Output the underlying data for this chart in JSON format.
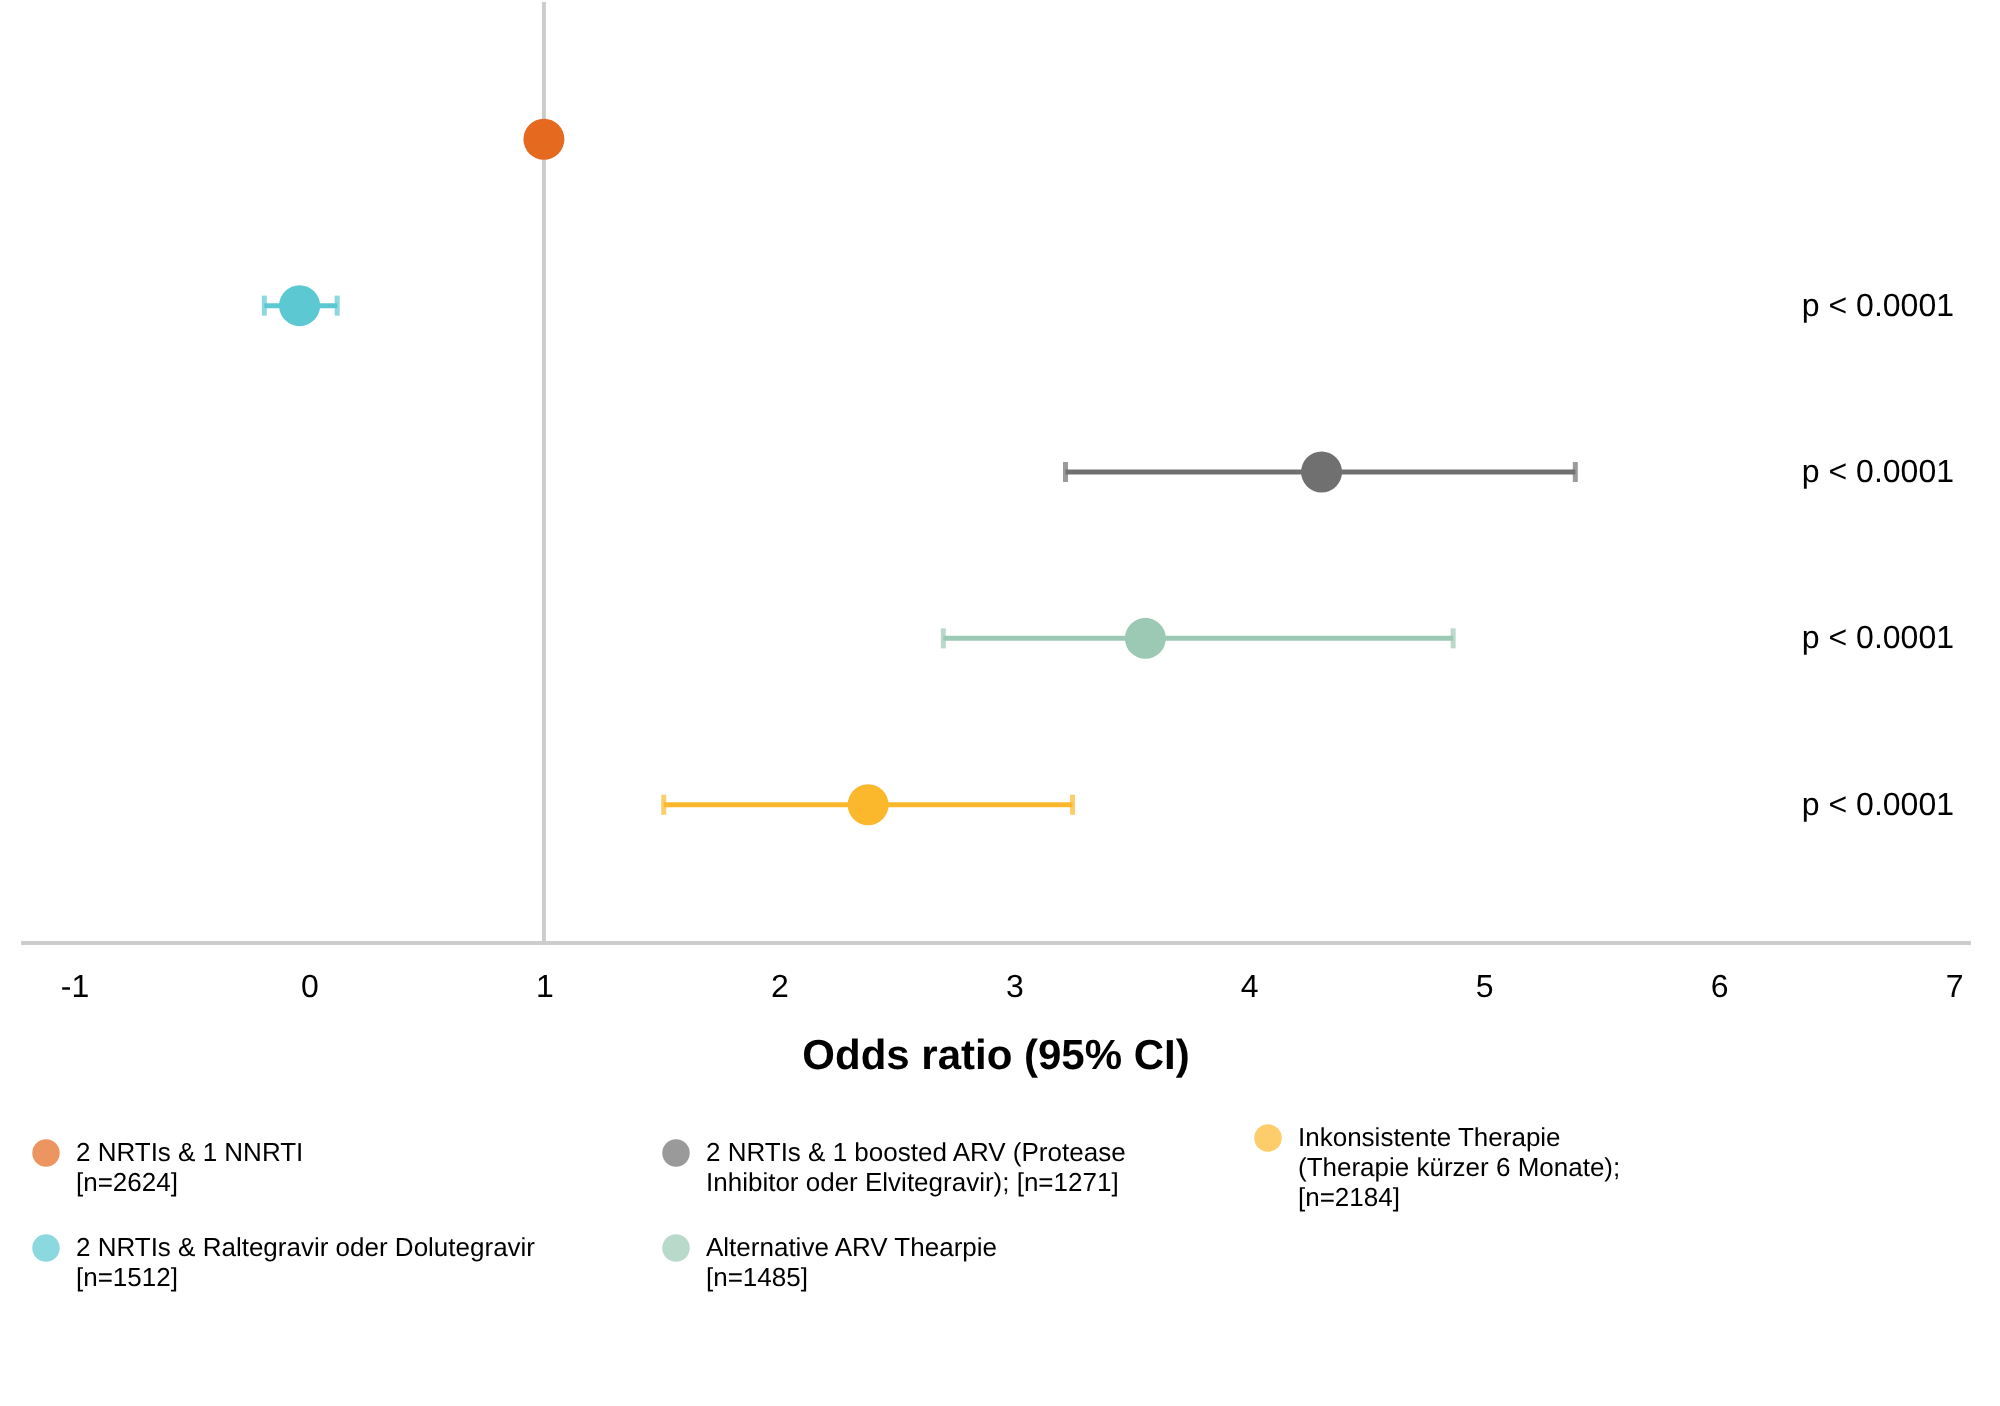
{
  "chart_data": {
    "type": "scatter",
    "orientation": "horizontal",
    "xlabel": "Odds ratio (95% CI)",
    "categories": [
      null,
      null,
      null,
      null,
      null
    ],
    "series": [
      {
        "name": "2 NRTIs & 1 NNRTI\n[n=2624]",
        "color": "#e5691f",
        "values": [
          1.0,
          null,
          null,
          null,
          null
        ],
        "errors": [
          null,
          null,
          null,
          null,
          null
        ]
      },
      {
        "name": "2 NRTIs & Raltegravir oder Dolutegravir\n[n=1512]",
        "color": "#5bc8d2",
        "values": [
          null,
          -0.04,
          null,
          null,
          null
        ],
        "errors": [
          null,
          [
            -0.19,
            0.12
          ],
          null,
          null,
          null
        ]
      },
      {
        "name": "2 NRTIs & 1 boosted ARV (Protease\nInhibitor oder Elvitegravir); [n=1271]",
        "color": "#707070",
        "values": [
          null,
          null,
          4.31,
          null,
          null
        ],
        "errors": [
          null,
          null,
          [
            3.22,
            5.39
          ],
          null,
          null
        ]
      },
      {
        "name": "Alternative ARV Thearpie\n[n=1485]",
        "color": "#9cc9b4",
        "values": [
          null,
          null,
          null,
          3.56,
          null
        ],
        "errors": [
          null,
          null,
          null,
          [
            2.7,
            4.87
          ],
          null
        ]
      },
      {
        "name": "Inkonsistente Therapie\n(Therapie kürzer 6 Monate);\n[n=2184]",
        "color": "#fbb82c",
        "values": [
          null,
          null,
          null,
          null,
          2.38
        ],
        "errors": [
          null,
          null,
          null,
          null,
          [
            1.51,
            3.25
          ]
        ]
      }
    ],
    "annotations": [
      "p <  0.0001",
      "p <  0.0001",
      "p <  0.0001",
      "p <  0.0001"
    ],
    "xlim": [
      -1.23,
      7.07
    ],
    "xticks": [
      -1,
      0,
      1,
      2,
      3,
      4,
      5,
      6,
      7
    ],
    "ref_lines": [
      {
        "axis": "x",
        "value": 1,
        "color": "#cccccc"
      }
    ],
    "grid": false,
    "legend": "bottom",
    "marker": "circle"
  }
}
